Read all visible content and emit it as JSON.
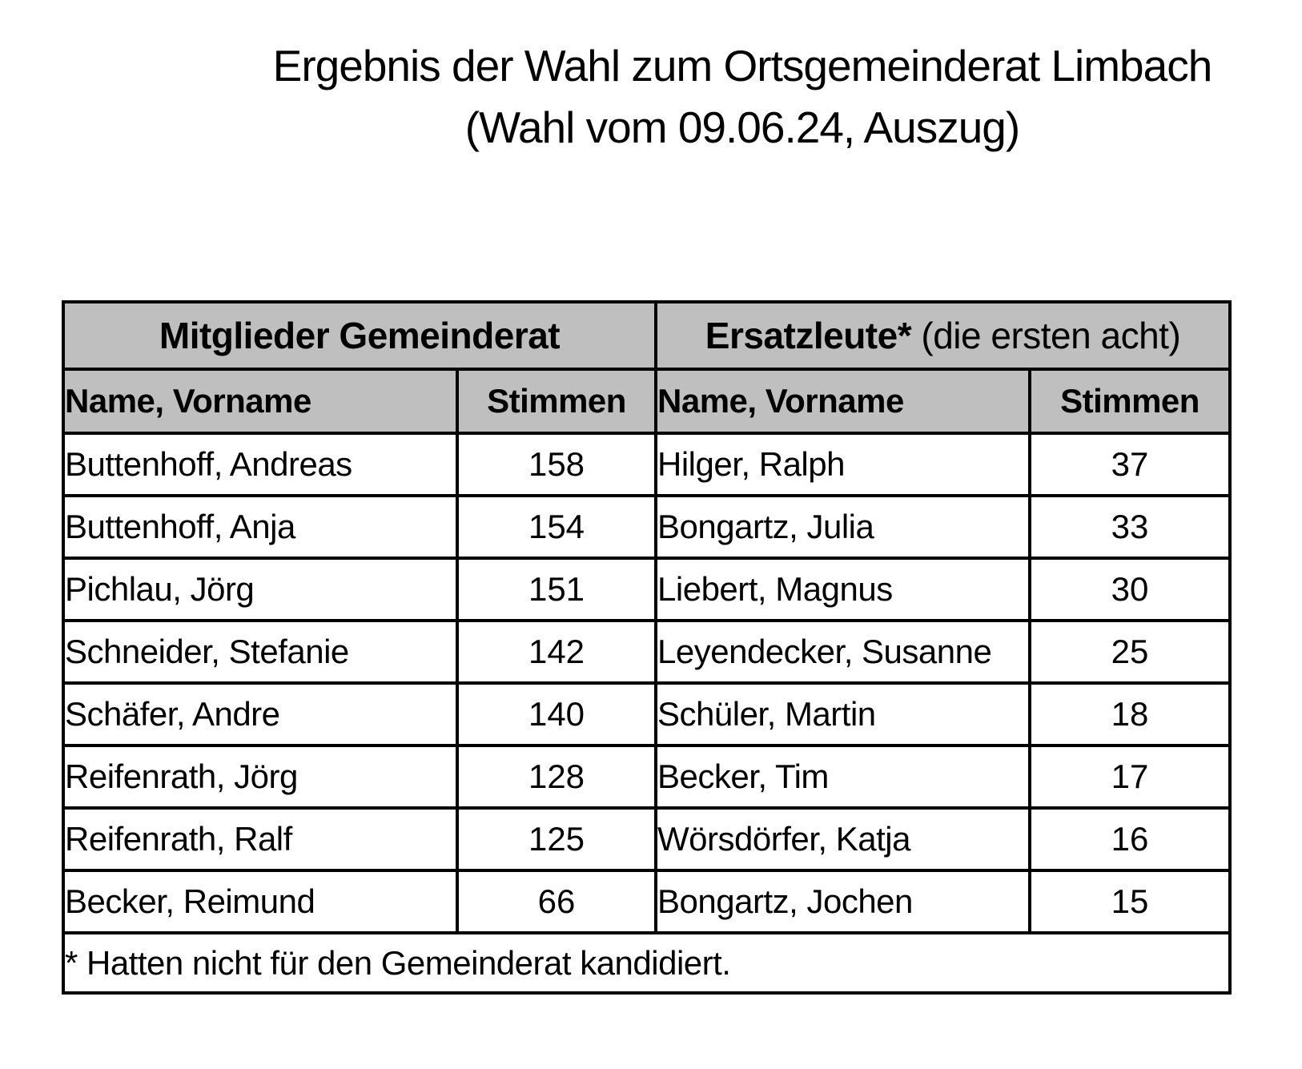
{
  "title": {
    "line1": "Ergebnis der Wahl zum Ortsgemeinderat Limbach",
    "line2": "(Wahl vom 09.06.24, Auszug)"
  },
  "table": {
    "groups": [
      {
        "label_bold": "Mitglieder Gemeinderat",
        "label_regular": ""
      },
      {
        "label_bold": "Ersatzleute*",
        "label_regular": " (die ersten acht)"
      }
    ],
    "column_headers": [
      "Name, Vorname",
      "Stimmen",
      "Name, Vorname",
      "Stimmen"
    ],
    "members": [
      {
        "name": "Buttenhoff, Andreas",
        "votes": "158"
      },
      {
        "name": "Buttenhoff, Anja",
        "votes": "154"
      },
      {
        "name": "Pichlau, Jörg",
        "votes": "151"
      },
      {
        "name": "Schneider, Stefanie",
        "votes": "142"
      },
      {
        "name": "Schäfer, Andre",
        "votes": "140"
      },
      {
        "name": "Reifenrath, Jörg",
        "votes": "128"
      },
      {
        "name": "Reifenrath, Ralf",
        "votes": "125"
      },
      {
        "name": "Becker, Reimund",
        "votes": "66"
      }
    ],
    "substitutes": [
      {
        "name": "Hilger, Ralph",
        "votes": "37"
      },
      {
        "name": "Bongartz, Julia",
        "votes": "33"
      },
      {
        "name": "Liebert, Magnus",
        "votes": "30"
      },
      {
        "name": "Leyendecker, Susanne",
        "votes": "25"
      },
      {
        "name": "Schüler, Martin",
        "votes": "18"
      },
      {
        "name": "Becker, Tim",
        "votes": "17"
      },
      {
        "name": "Wörsdörfer, Katja",
        "votes": "16"
      },
      {
        "name": "Bongartz, Jochen",
        "votes": "15"
      }
    ],
    "footnote": "* Hatten nicht für den Gemeinderat kandidiert."
  },
  "colors": {
    "header_bg": "#bfbfbf",
    "border": "#000000",
    "text": "#000000",
    "page_bg": "#ffffff"
  }
}
